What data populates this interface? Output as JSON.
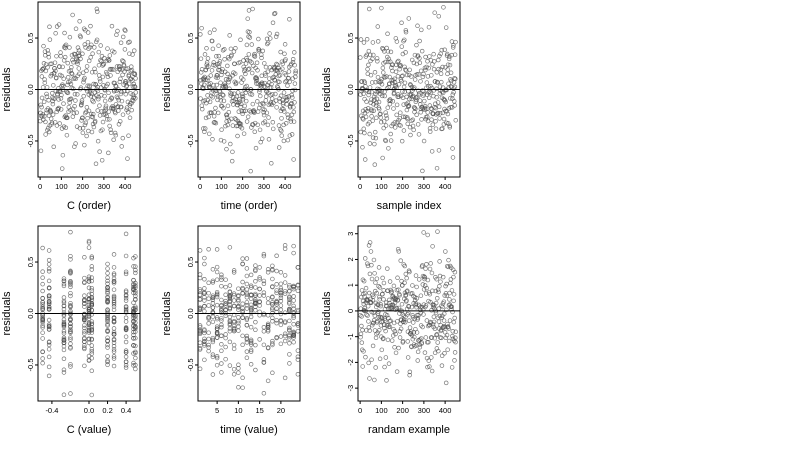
{
  "colors": {
    "point": "#4a4a4a",
    "line": "#000000",
    "background": "#ffffff"
  },
  "chart_data": [
    {
      "type": "scatter",
      "title": "",
      "xlabel": "C (order)",
      "ylabel": "residuals",
      "xlim": [
        -10,
        470
      ],
      "ylim": [
        -0.85,
        0.85
      ],
      "xticks": [
        0,
        100,
        200,
        300,
        400
      ],
      "xtick_labels": [
        "0",
        "100",
        "200",
        "300",
        "400"
      ],
      "yticks": [
        -0.5,
        0,
        0.5
      ],
      "ytick_labels": [
        "-0.5",
        "0.0",
        "0.5"
      ],
      "hline": 0,
      "grid": false,
      "legend": "none",
      "n_points": 450,
      "x_range": [
        1,
        450
      ],
      "residual_sd": 0.27,
      "seed": 11,
      "x_mode": "index"
    },
    {
      "type": "scatter",
      "title": "",
      "xlabel": "time (order)",
      "ylabel": "residuals",
      "xlim": [
        -10,
        470
      ],
      "ylim": [
        -0.85,
        0.85
      ],
      "xticks": [
        0,
        100,
        200,
        300,
        400
      ],
      "xtick_labels": [
        "0",
        "100",
        "200",
        "300",
        "400"
      ],
      "yticks": [
        -0.5,
        0,
        0.5
      ],
      "ytick_labels": [
        "-0.5",
        "0.0",
        "0.5"
      ],
      "hline": 0,
      "grid": false,
      "legend": "none",
      "n_points": 450,
      "x_range": [
        1,
        450
      ],
      "residual_sd": 0.27,
      "seed": 23,
      "x_mode": "index"
    },
    {
      "type": "scatter",
      "title": "",
      "xlabel": "sample index",
      "ylabel": "residuals",
      "xlim": [
        -10,
        470
      ],
      "ylim": [
        -0.85,
        0.85
      ],
      "xticks": [
        0,
        100,
        200,
        300,
        400
      ],
      "xtick_labels": [
        "0",
        "100",
        "200",
        "300",
        "400"
      ],
      "yticks": [
        -0.5,
        0,
        0.5
      ],
      "ytick_labels": [
        "-0.5",
        "0.0",
        "0.5"
      ],
      "hline": 0,
      "grid": false,
      "legend": "none",
      "n_points": 450,
      "x_range": [
        1,
        450
      ],
      "residual_sd": 0.27,
      "seed": 37,
      "x_mode": "index"
    },
    {
      "type": "scatter",
      "title": "",
      "xlabel": "C (value)",
      "ylabel": "residuals",
      "xlim": [
        -0.55,
        0.55
      ],
      "ylim": [
        -0.85,
        0.85
      ],
      "xticks": [
        -0.4,
        0.0,
        0.2,
        0.4
      ],
      "xtick_labels": [
        "-0.4",
        "0.0",
        "0.2",
        "0.4"
      ],
      "yticks": [
        -0.5,
        0,
        0.5
      ],
      "ytick_labels": [
        "-0.5",
        "0.0",
        "0.5"
      ],
      "hline": 0,
      "grid": false,
      "legend": "none",
      "n_points": 450,
      "x_values": [
        -0.5,
        -0.43,
        -0.27,
        -0.2,
        -0.05,
        0.0,
        0.03,
        0.2,
        0.27,
        0.4,
        0.48,
        0.5
      ],
      "residual_sd": 0.27,
      "seed": 41,
      "x_mode": "levels"
    },
    {
      "type": "scatter",
      "title": "",
      "xlabel": "time (value)",
      "ylabel": "residuals",
      "xlim": [
        0.5,
        24.5
      ],
      "ylim": [
        -0.85,
        0.85
      ],
      "xticks": [
        5,
        10,
        15,
        20
      ],
      "xtick_labels": [
        "5",
        "10",
        "15",
        "20"
      ],
      "yticks": [
        -0.5,
        0,
        0.5
      ],
      "ytick_labels": [
        "-0.5",
        "0.0",
        "0.5"
      ],
      "hline": 0,
      "grid": false,
      "legend": "none",
      "n_points": 450,
      "x_values": [
        1,
        2,
        3,
        4,
        5,
        6,
        7,
        8,
        9,
        10,
        11,
        12,
        13,
        14,
        15,
        16,
        17,
        18,
        19,
        20,
        21,
        22,
        23,
        24
      ],
      "residual_sd": 0.27,
      "seed": 53,
      "x_mode": "levels"
    },
    {
      "type": "scatter",
      "title": "",
      "xlabel": "randam example",
      "ylabel": "residuals",
      "xlim": [
        -10,
        470
      ],
      "ylim": [
        -3.5,
        3.3
      ],
      "xticks": [
        0,
        100,
        200,
        300,
        400
      ],
      "xtick_labels": [
        "0",
        "100",
        "200",
        "300",
        "400"
      ],
      "yticks": [
        -3,
        -2,
        -1,
        0,
        1,
        2,
        3
      ],
      "ytick_labels": [
        "-3",
        "-2",
        "-1",
        "0",
        "1",
        "2",
        "3"
      ],
      "hline": 0,
      "grid": false,
      "legend": "none",
      "n_points": 450,
      "x_range": [
        1,
        450
      ],
      "residual_sd": 1.0,
      "seed": 67,
      "x_mode": "index"
    }
  ]
}
